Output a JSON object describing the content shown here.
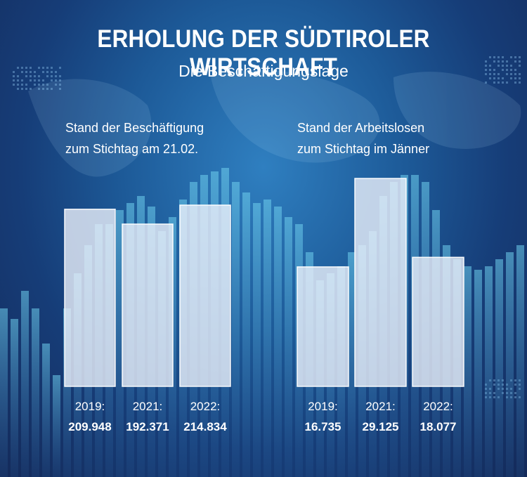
{
  "title": "ERHOLUNG DER SÜDTIROLER WIRTSCHAFT",
  "subtitle": "Die Beschäftigungslage",
  "left_heading": {
    "line1": "Stand der Beschäftigung",
    "line2": "zum Stichtag am 21.02."
  },
  "right_heading": {
    "line1": "Stand der Arbeitslosen",
    "line2": "zum Stichtag im Jänner"
  },
  "colors": {
    "bar_fill": "#eef1f8",
    "background": "#1d5a98",
    "text": "#ffffff"
  },
  "chart_data": [
    {
      "type": "bar",
      "title": "Stand der Beschäftigung zum Stichtag am 21.02.",
      "categories": [
        "2019:",
        "2021:",
        "2022:"
      ],
      "values": [
        209948,
        192371,
        214834
      ],
      "value_labels": [
        "209.948",
        "192.371",
        "214.834"
      ],
      "axis_visible": false
    },
    {
      "type": "bar",
      "title": "Stand der Arbeitslosen zum Stichtag im Jänner",
      "categories": [
        "2019:",
        "2021:",
        "2022:"
      ],
      "values": [
        16735,
        29125,
        18077
      ],
      "value_labels": [
        "16.735",
        "29.125",
        "18.077"
      ],
      "axis_visible": false
    }
  ]
}
